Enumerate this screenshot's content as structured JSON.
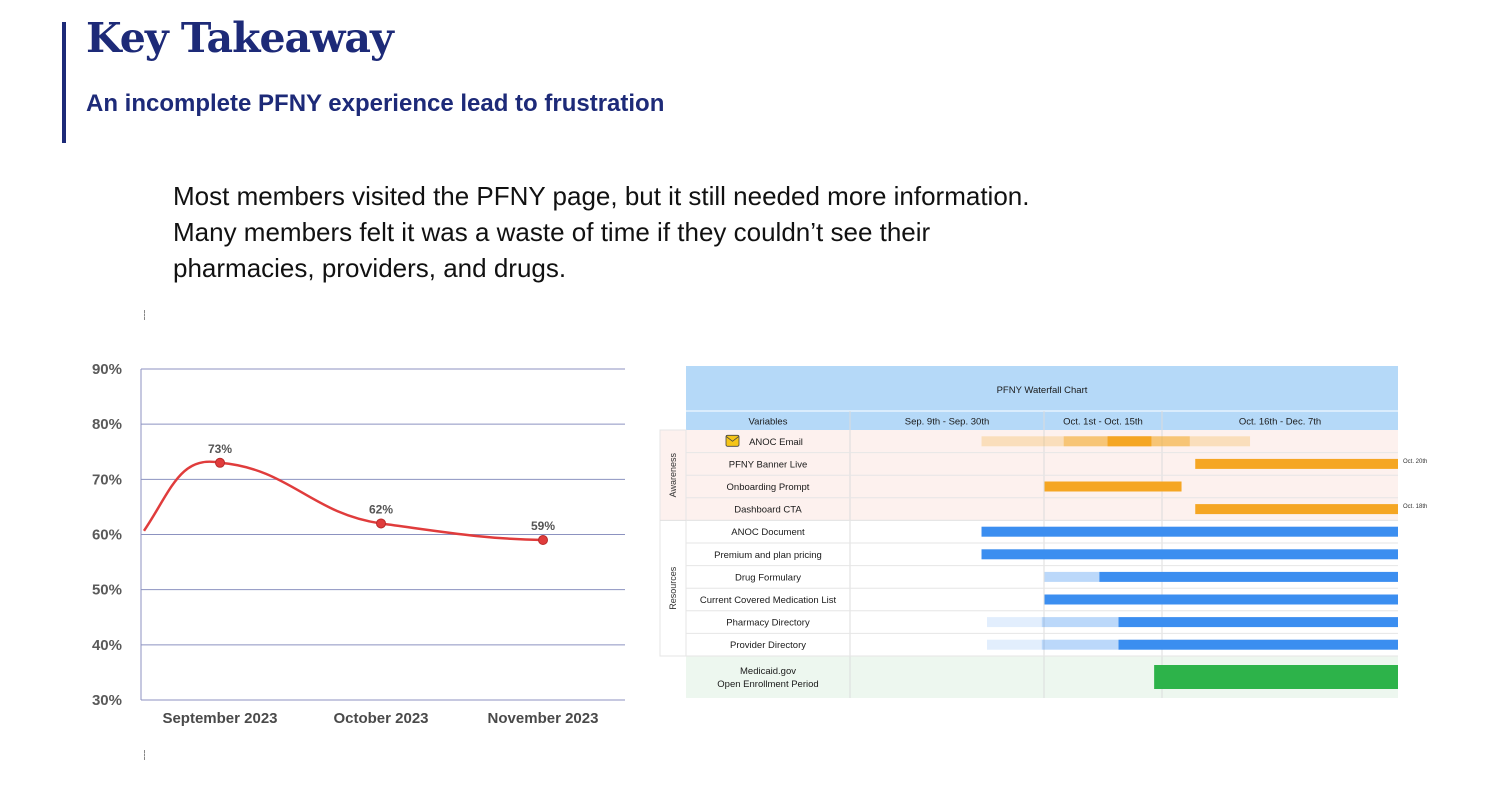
{
  "header": {
    "title": "Key Takeaway",
    "subtitle": "An incomplete PFNY experience lead to frustration"
  },
  "body": {
    "lines": [
      "Most members visited the PFNY page, but it still needed more information.",
      "Many members felt it was a waste of time if they couldn’t see their",
      "pharmacies, providers, and drugs."
    ]
  },
  "chart_data": [
    {
      "type": "line",
      "title": "",
      "xlabel": "",
      "ylabel": "",
      "categories": [
        "September 2023",
        "October 2023",
        "November 2023"
      ],
      "series": [
        {
          "values": [
            73,
            62,
            59
          ],
          "data_labels": [
            "73%",
            "62%",
            "59%"
          ],
          "color": "#e03c3c"
        }
      ],
      "ylim": [
        30,
        90
      ],
      "yticks": [
        "90%",
        "80%",
        "70%",
        "60%",
        "50%",
        "40%",
        "30%"
      ],
      "grid": true
    },
    {
      "type": "table",
      "title": "PFNY Waterfall Chart",
      "columns": [
        "Variables",
        "Sep. 9th - Sep. 30th",
        "Oct. 1st - Oct. 15th",
        "Oct. 16th - Dec. 7th"
      ],
      "groups": [
        "Awareness",
        "Resources"
      ],
      "rows": [
        {
          "label": "ANOC Email",
          "group": "Awareness",
          "icon": "email-icon",
          "color": "#f5a623",
          "bars": [
            {
              "start": 0.24,
              "end": 0.73,
              "opacity": 0.25
            },
            {
              "start": 0.39,
              "end": 0.62,
              "opacity": 0.45
            },
            {
              "start": 0.47,
              "end": 0.55,
              "opacity": 1.0
            }
          ]
        },
        {
          "label": "PFNY Banner Live",
          "group": "Awareness",
          "color": "#f5a623",
          "note": "Oct. 20th",
          "bars": [
            {
              "start": 0.63,
              "end": 1.0,
              "opacity": 1.0
            }
          ]
        },
        {
          "label": "Onboarding Prompt",
          "group": "Awareness",
          "color": "#f5a623",
          "bars": [
            {
              "start": 0.355,
              "end": 0.605,
              "opacity": 1.0
            }
          ]
        },
        {
          "label": "Dashboard CTA",
          "group": "Awareness",
          "color": "#f5a623",
          "note": "Oct. 18th",
          "bars": [
            {
              "start": 0.63,
              "end": 1.0,
              "opacity": 1.0
            }
          ]
        },
        {
          "label": "ANOC Document",
          "group": "Resources",
          "color": "#3b8ef0",
          "bars": [
            {
              "start": 0.24,
              "end": 1.0,
              "opacity": 1.0
            }
          ]
        },
        {
          "label": "Premium and plan pricing",
          "group": "Resources",
          "color": "#3b8ef0",
          "bars": [
            {
              "start": 0.24,
              "end": 1.0,
              "opacity": 1.0
            }
          ]
        },
        {
          "label": "Drug Formulary",
          "group": "Resources",
          "color": "#3b8ef0",
          "bars": [
            {
              "start": 0.355,
              "end": 0.455,
              "opacity": 0.35
            },
            {
              "start": 0.455,
              "end": 1.0,
              "opacity": 1.0
            }
          ]
        },
        {
          "label": "Current Covered Medication List",
          "group": "Resources",
          "color": "#3b8ef0",
          "bars": [
            {
              "start": 0.355,
              "end": 1.0,
              "opacity": 1.0
            }
          ]
        },
        {
          "label": "Pharmacy Directory",
          "group": "Resources",
          "color": "#3b8ef0",
          "bars": [
            {
              "start": 0.25,
              "end": 0.35,
              "opacity": 0.15
            },
            {
              "start": 0.35,
              "end": 0.49,
              "opacity": 0.35
            },
            {
              "start": 0.49,
              "end": 1.0,
              "opacity": 1.0
            }
          ]
        },
        {
          "label": "Provider Directory",
          "group": "Resources",
          "color": "#3b8ef0",
          "bars": [
            {
              "start": 0.25,
              "end": 0.35,
              "opacity": 0.15
            },
            {
              "start": 0.35,
              "end": 0.49,
              "opacity": 0.35
            },
            {
              "start": 0.49,
              "end": 1.0,
              "opacity": 1.0
            }
          ]
        },
        {
          "label": "Medicaid.gov\nOpen Enrollment Period",
          "group": "",
          "color": "#2db34a",
          "bars": [
            {
              "start": 0.555,
              "end": 1.0,
              "opacity": 1.0
            }
          ]
        }
      ]
    }
  ],
  "colors": {
    "brand": "#1d2a78",
    "line": "#e03c3c",
    "orange": "#f5a623",
    "blue": "#3b8ef0",
    "green": "#2db34a",
    "header_bg": "#b5d9f8",
    "awareness_bg": "#fdf1ee",
    "medicaid_bg": "#edf7ef"
  }
}
